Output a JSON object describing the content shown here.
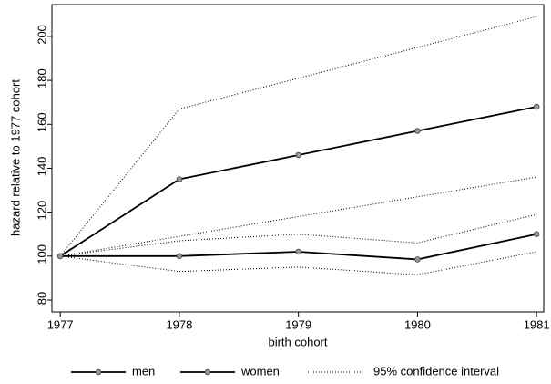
{
  "chart_data": {
    "type": "line",
    "x_label": "birth cohort",
    "y_label": "hazard relative to 1977 cohort",
    "x": [
      1977,
      1978,
      1979,
      1980,
      1981
    ],
    "series": [
      {
        "name": "men",
        "color": "#000000",
        "values": [
          100,
          100,
          102,
          98.5,
          110
        ]
      },
      {
        "name": "women",
        "color": "#000000",
        "values": [
          100,
          135,
          146,
          157,
          168
        ]
      }
    ],
    "confidence_interval": {
      "name": "95% confidence interval",
      "color": "#000000",
      "lines": [
        [
          100,
          167,
          181,
          195,
          209
        ],
        [
          100,
          109,
          118,
          127,
          136
        ],
        [
          100,
          107,
          110,
          106,
          119
        ],
        [
          100,
          93,
          95,
          91.5,
          102
        ]
      ]
    },
    "xlim": [
      1976.93,
      1981.06
    ],
    "xticks": [
      1977,
      1978,
      1979,
      1980,
      1981
    ],
    "ylim": [
      74.6,
      214.5
    ],
    "yticks": [
      80,
      100,
      120,
      140,
      160,
      180,
      200
    ],
    "grid": false
  }
}
